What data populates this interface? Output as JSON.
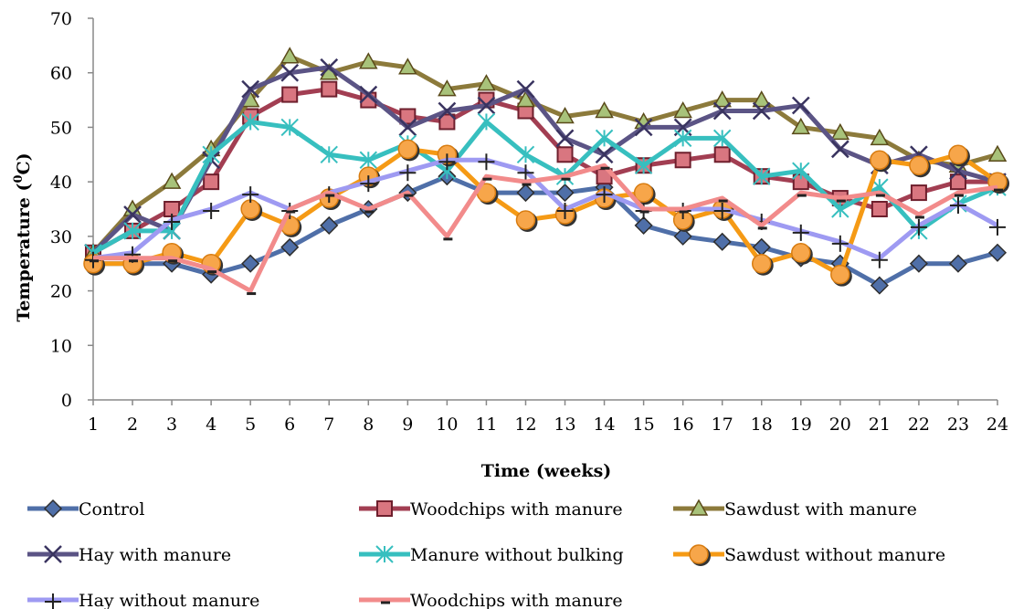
{
  "chart_data": {
    "type": "line",
    "xlabel": "Time (weeks)",
    "ylabel": "Temperature (",
    "ylabel_sup": "0",
    "ylabel_tail": "C)",
    "ylim": [
      0,
      70
    ],
    "yticks": [
      0,
      10,
      20,
      30,
      40,
      50,
      60,
      70
    ],
    "x": [
      1,
      2,
      3,
      4,
      5,
      6,
      7,
      8,
      9,
      10,
      11,
      12,
      13,
      14,
      15,
      16,
      17,
      18,
      19,
      20,
      21,
      22,
      23,
      24
    ],
    "grid": false,
    "legend_position": "bottom",
    "series": [
      {
        "name": "Control",
        "color": "#4F6FA8",
        "marker": "diamond",
        "values": [
          25,
          25,
          25,
          23,
          25,
          28,
          32,
          35,
          38,
          41,
          38,
          38,
          38,
          39,
          32,
          30,
          29,
          28,
          26,
          25,
          21,
          25,
          25,
          27
        ]
      },
      {
        "name": "Woodchips with manure",
        "color": "#A23E52",
        "marker": "square",
        "values": [
          27,
          31,
          35,
          40,
          52,
          56,
          57,
          55,
          52,
          51,
          55,
          53,
          45,
          41,
          43,
          44,
          45,
          41,
          40,
          37,
          35,
          38,
          40,
          40
        ]
      },
      {
        "name": "Sawdust with manure",
        "color": "#8C7A3B",
        "marker": "triangle",
        "values": [
          27,
          35,
          40,
          46,
          55,
          63,
          60,
          62,
          61,
          57,
          58,
          55,
          52,
          53,
          51,
          53,
          55,
          55,
          50,
          49,
          48,
          44,
          43,
          45
        ]
      },
      {
        "name": "Hay with manure",
        "color": "#5B5485",
        "marker": "x",
        "values": [
          27,
          34,
          31,
          44,
          57,
          60,
          61,
          56,
          50,
          53,
          54,
          57,
          48,
          45,
          50,
          50,
          53,
          53,
          54,
          46,
          43,
          45,
          42,
          40
        ]
      },
      {
        "name": "Manure without bulking",
        "color": "#37BFBF",
        "marker": "asterisk",
        "values": [
          27,
          31,
          31,
          45,
          51,
          50,
          45,
          44,
          47,
          42,
          51,
          45,
          41,
          48,
          43,
          48,
          48,
          41,
          42,
          35,
          39,
          31,
          36,
          39
        ]
      },
      {
        "name": "Sawdust without manure",
        "color": "#F59A15",
        "marker": "circle",
        "values": [
          25,
          25,
          27,
          25,
          35,
          32,
          37,
          41,
          46,
          45,
          38,
          33,
          34,
          37,
          38,
          33,
          35,
          25,
          27,
          23,
          44,
          43,
          45,
          40
        ]
      },
      {
        "name": "Hay without manure",
        "color": "#9E9AF2",
        "marker": "plus",
        "values": [
          26,
          27,
          33,
          35,
          38,
          35,
          38,
          40,
          42,
          44,
          44,
          42,
          35,
          38,
          35,
          35,
          35,
          33,
          31,
          29,
          26,
          32,
          36,
          32
        ]
      },
      {
        "name": "Woodchips with manure",
        "color": "#F28B8B",
        "marker": "dash",
        "values": [
          26,
          26,
          26,
          24,
          20,
          35,
          38,
          35,
          38,
          30,
          41,
          40,
          41,
          43,
          35,
          35,
          37,
          32,
          38,
          37,
          38,
          34,
          38,
          39
        ]
      }
    ]
  }
}
